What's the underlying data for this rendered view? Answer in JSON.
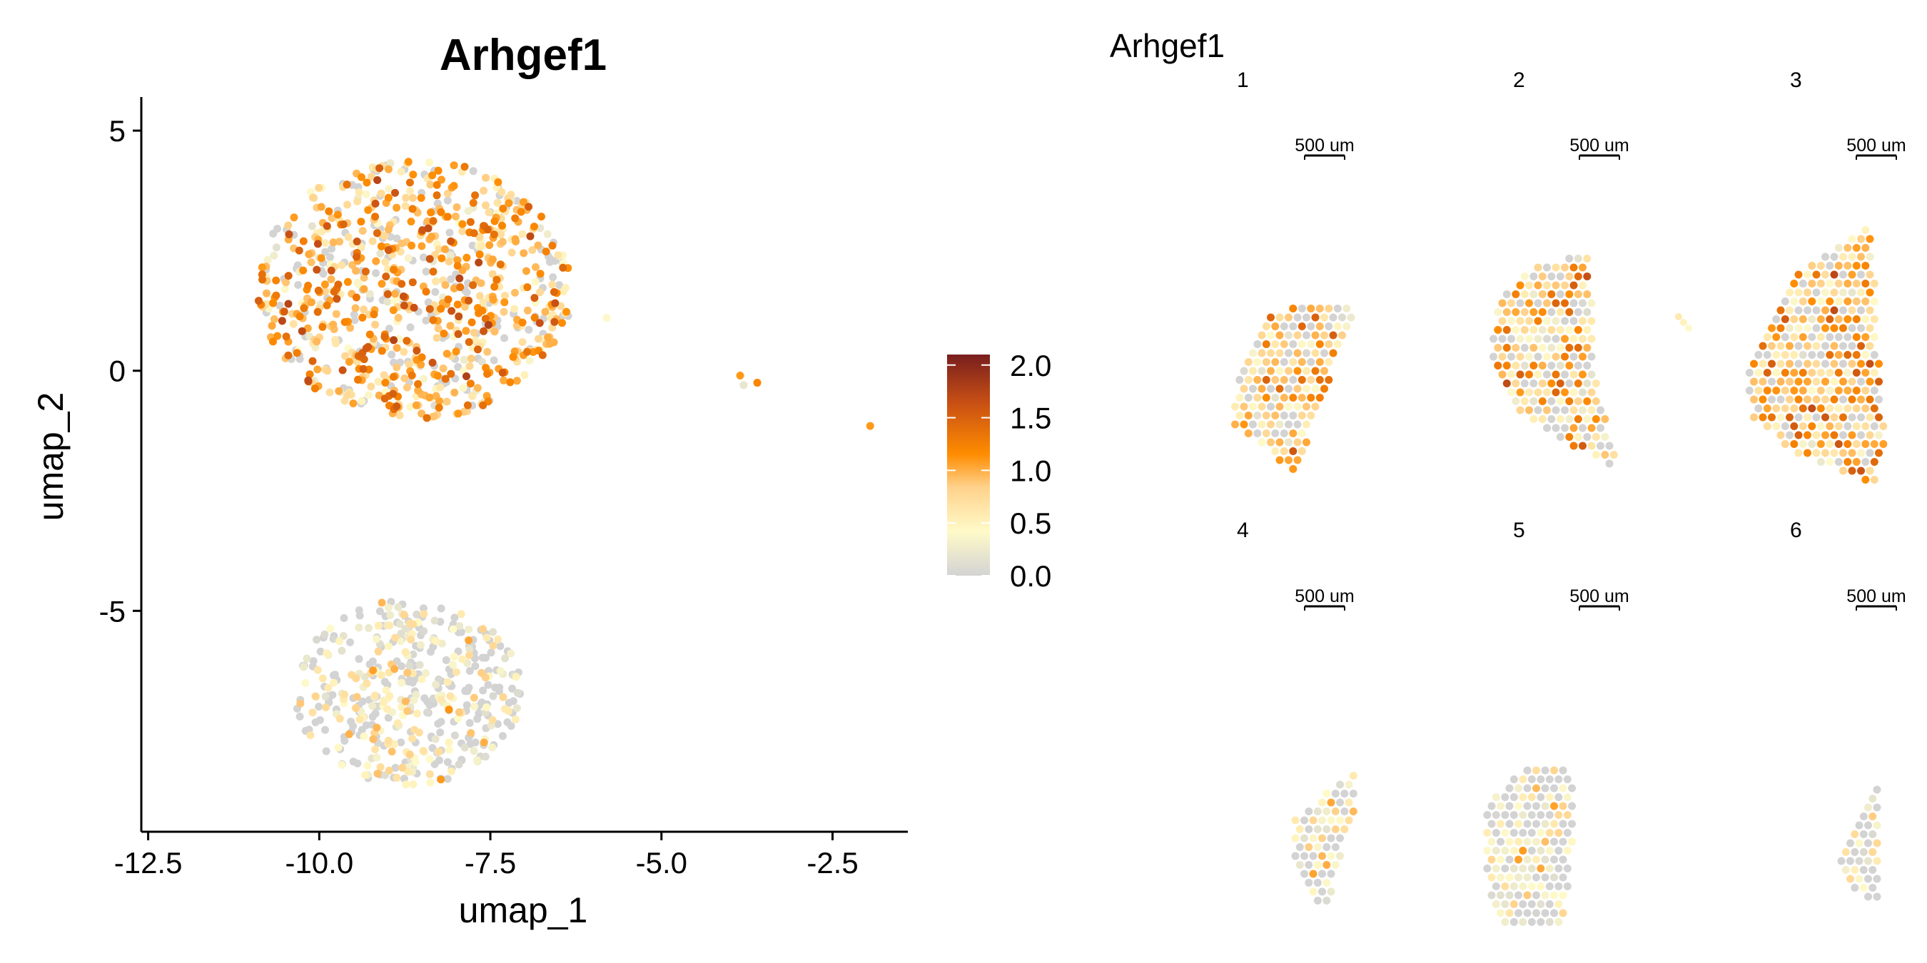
{
  "chart_data": [
    {
      "type": "scatter",
      "title": "Arhgef1",
      "xlabel": "umap_1",
      "ylabel": "umap_2",
      "xlim": [
        -12.6,
        -1.4
      ],
      "ylim": [
        -9.6,
        5.7
      ],
      "xticks": [
        -12.5,
        -10.0,
        -7.5,
        -5.0,
        -2.5
      ],
      "xtick_labels": [
        "-12.5",
        "-10.0",
        "-7.5",
        "-5.0",
        "-2.5"
      ],
      "yticks": [
        5,
        0,
        -5
      ],
      "ytick_labels": [
        "5",
        "0",
        "-5"
      ],
      "grid": false,
      "clusters": [
        {
          "center": [
            -8.6,
            1.7
          ],
          "rx": 2.3,
          "ry": 2.7,
          "n": 850,
          "mean_expression": 0.95
        },
        {
          "center": [
            -8.7,
            -6.7
          ],
          "rx": 1.65,
          "ry": 1.95,
          "n": 450,
          "mean_expression": 0.3
        }
      ],
      "outlier_points": [
        {
          "x": -5.8,
          "y": 1.1,
          "value": 0.4
        },
        {
          "x": -3.85,
          "y": -0.1,
          "value": 1.1
        },
        {
          "x": -3.6,
          "y": -0.25,
          "value": 1.2
        },
        {
          "x": -3.8,
          "y": -0.3,
          "value": 0.2
        },
        {
          "x": -1.95,
          "y": -1.15,
          "value": 1.1
        }
      ]
    },
    {
      "type": "scatter",
      "title": "Arhgef1",
      "panels": [
        {
          "label": "1",
          "scalebar": "500 um",
          "mean_expression": 0.85
        },
        {
          "label": "2",
          "scalebar": "500 um",
          "mean_expression": 0.85
        },
        {
          "label": "3",
          "scalebar": "500 um",
          "mean_expression": 0.85
        },
        {
          "label": "4",
          "scalebar": "500 um",
          "mean_expression": 0.4
        },
        {
          "label": "5",
          "scalebar": "500 um",
          "mean_expression": 0.3
        },
        {
          "label": "6",
          "scalebar": "500 um",
          "mean_expression": 0.15
        }
      ]
    }
  ],
  "legend": {
    "ticks": [
      2.0,
      1.5,
      1.0,
      0.5,
      0.0
    ],
    "tick_labels": [
      "2.0",
      "1.5",
      "1.0",
      "0.5",
      "0.0"
    ],
    "range": [
      0,
      2.1
    ],
    "colors": [
      "#d3d3d3",
      "#fffac8",
      "#ffd28c",
      "#ff8c00",
      "#c85014",
      "#781e1e"
    ]
  }
}
